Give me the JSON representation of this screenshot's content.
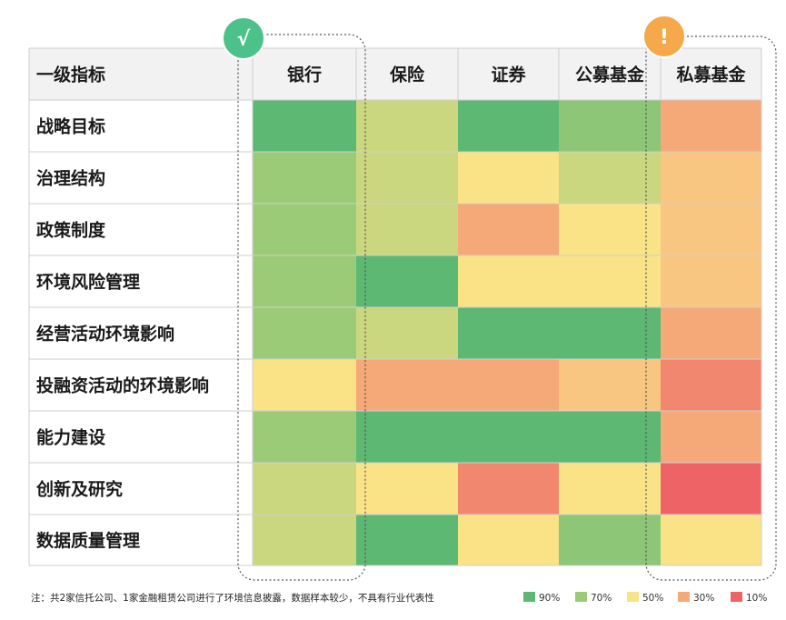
{
  "chart_data": {
    "type": "heatmap",
    "corner_label": "一级指标",
    "columns": [
      "银行",
      "保险",
      "证券",
      "公募基金",
      "私募基金"
    ],
    "rows": [
      "战略目标",
      "治理结构",
      "政策制度",
      "环境风险管理",
      "经营活动环境影响",
      "投融资活动的环境影响",
      "能力建设",
      "创新及研究",
      "数据质量管理"
    ],
    "values": [
      [
        90,
        60,
        90,
        75,
        30
      ],
      [
        70,
        60,
        50,
        60,
        40
      ],
      [
        70,
        60,
        30,
        50,
        40
      ],
      [
        70,
        90,
        50,
        50,
        40
      ],
      [
        70,
        60,
        90,
        90,
        30
      ],
      [
        50,
        30,
        30,
        40,
        20
      ],
      [
        70,
        90,
        90,
        90,
        30
      ],
      [
        60,
        50,
        20,
        50,
        10
      ],
      [
        60,
        90,
        50,
        75,
        50
      ]
    ],
    "legend": [
      {
        "label": "90%",
        "color": "#5db873"
      },
      {
        "label": "70%",
        "color": "#9bcb77"
      },
      {
        "label": "50%",
        "color": "#fae387"
      },
      {
        "label": "30%",
        "color": "#f6a978"
      },
      {
        "label": "10%",
        "color": "#ee6466"
      }
    ],
    "highlights": [
      {
        "column": "银行",
        "badge": "√",
        "color": "#4cc18a"
      },
      {
        "column": "私募基金",
        "badge": "!",
        "color": "#f5a94a"
      }
    ],
    "note": "注：共2家信托公司、1家金融租赁公司进行了环境信息披露，数据样本较少，不具有行业代表性"
  }
}
